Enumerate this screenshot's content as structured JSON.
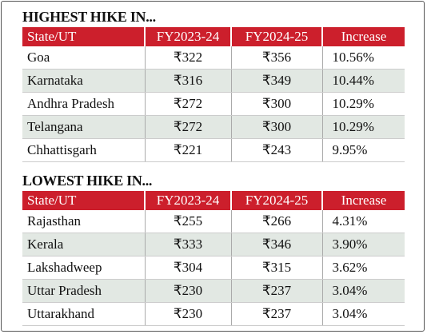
{
  "sections": [
    {
      "title": "HIGHEST HIKE IN...",
      "columns": [
        "State/UT",
        "FY2023-24",
        "FY2024-25",
        "Increase"
      ],
      "rows": [
        [
          "Goa",
          "₹322",
          "₹356",
          "10.56%"
        ],
        [
          "Karnataka",
          "₹316",
          "₹349",
          "10.44%"
        ],
        [
          "Andhra Pradesh",
          "₹272",
          "₹300",
          "10.29%"
        ],
        [
          "Telangana",
          "₹272",
          "₹300",
          "10.29%"
        ],
        [
          "Chhattisgarh",
          "₹221",
          "₹243",
          "9.95%"
        ]
      ]
    },
    {
      "title": "LOWEST HIKE IN...",
      "columns": [
        "State/UT",
        "FY2023-24",
        "FY2024-25",
        "Increase"
      ],
      "rows": [
        [
          "Rajasthan",
          "₹255",
          "₹266",
          "4.31%"
        ],
        [
          "Kerala",
          "₹333",
          "₹346",
          "3.90%"
        ],
        [
          "Lakshadweep",
          "₹304",
          "₹315",
          "3.62%"
        ],
        [
          "Uttar Pradesh",
          "₹230",
          "₹237",
          "3.04%"
        ],
        [
          "Uttarakhand",
          "₹230",
          "₹237",
          "3.04%"
        ]
      ]
    }
  ]
}
